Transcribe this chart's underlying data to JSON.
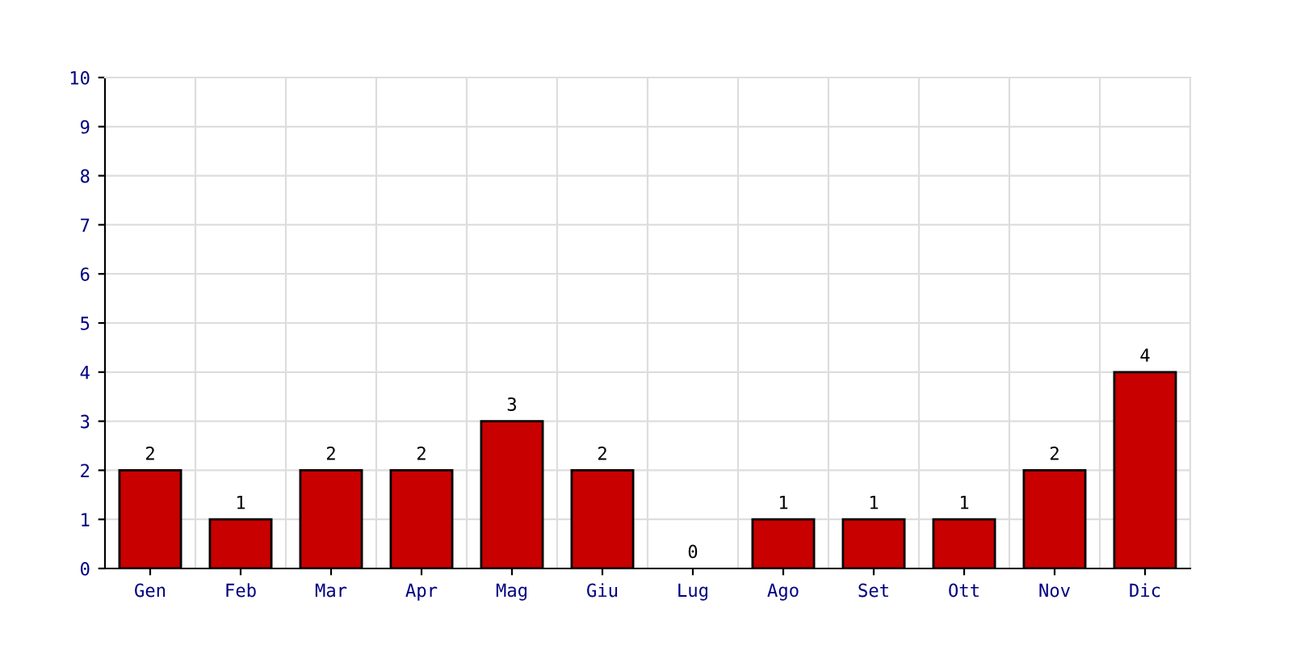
{
  "chart_data": {
    "type": "bar",
    "categories": [
      "Gen",
      "Feb",
      "Mar",
      "Apr",
      "Mag",
      "Giu",
      "Lug",
      "Ago",
      "Set",
      "Ott",
      "Nov",
      "Dic"
    ],
    "values": [
      2,
      1,
      2,
      2,
      3,
      2,
      0,
      1,
      1,
      1,
      2,
      4
    ],
    "color": "#c80000",
    "ylim": [
      0,
      10
    ],
    "yticks": [
      0,
      1,
      2,
      3,
      4,
      5,
      6,
      7,
      8,
      9,
      10
    ],
    "grid": true,
    "data_labels": true
  }
}
